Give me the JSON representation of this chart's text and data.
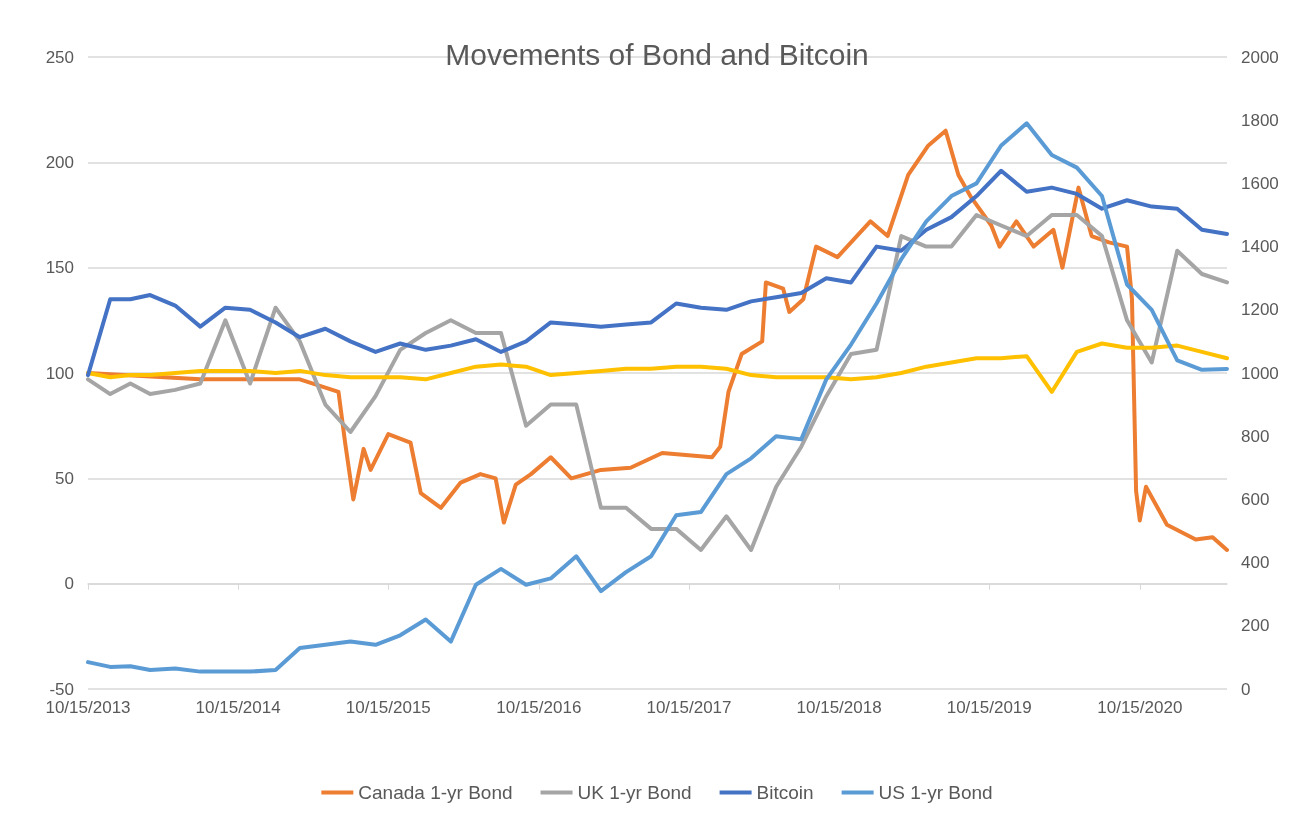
{
  "chart_data": {
    "type": "line",
    "title": "Movements of Bond and Bitcoin",
    "x": [
      "2013-10-15",
      "2013-12-08",
      "2014-01-26",
      "2014-03-15",
      "2014-05-15",
      "2014-07-15",
      "2014-09-14",
      "2014-11-13",
      "2015-01-14",
      "2015-03-14",
      "2015-05-15",
      "2015-07-15",
      "2015-09-14",
      "2015-11-13",
      "2016-01-14",
      "2016-03-15",
      "2016-05-15",
      "2016-07-15",
      "2016-09-14",
      "2016-11-13",
      "2017-01-14",
      "2017-03-15",
      "2017-05-15",
      "2017-07-15",
      "2017-09-14",
      "2017-11-13",
      "2018-01-14",
      "2018-03-15",
      "2018-05-15",
      "2018-07-15",
      "2018-09-14",
      "2018-11-13",
      "2019-01-14",
      "2019-03-15",
      "2019-05-15",
      "2019-07-15",
      "2019-09-14",
      "2019-11-13",
      "2020-01-14",
      "2020-03-15",
      "2020-05-15",
      "2020-07-15",
      "2020-09-14",
      "2020-11-13",
      "2021-01-14",
      "2021-03-15",
      "2021-05-15"
    ],
    "series": [
      {
        "name": "Canada 1-yr Bond",
        "color": "#ed7d31",
        "x": [
          "2013-10-15",
          "2014-07-15",
          "2015-03-14",
          "2015-06-16",
          "2015-07-02",
          "2015-07-22",
          "2015-08-16",
          "2015-09-02",
          "2015-10-15",
          "2015-12-08",
          "2016-01-02",
          "2016-02-20",
          "2016-04-08",
          "2016-05-26",
          "2016-07-02",
          "2016-07-22",
          "2016-08-20",
          "2016-09-26",
          "2016-11-13",
          "2017-01-02",
          "2017-03-15",
          "2017-05-26",
          "2017-08-11",
          "2017-12-10",
          "2017-12-30",
          "2018-01-19",
          "2018-02-20",
          "2018-04-11",
          "2018-04-20",
          "2018-06-01",
          "2018-06-16",
          "2018-07-20",
          "2018-08-20",
          "2018-10-11",
          "2018-12-30",
          "2019-02-10",
          "2019-04-01",
          "2019-05-20",
          "2019-07-01",
          "2019-08-01",
          "2019-08-30",
          "2019-10-20",
          "2019-11-09",
          "2019-12-20",
          "2020-01-31",
          "2020-03-19",
          "2020-04-10",
          "2020-05-19",
          "2020-06-20",
          "2020-08-01",
          "2020-09-14",
          "2020-09-26",
          "2020-10-06",
          "2020-10-15",
          "2020-10-30",
          "2020-12-20",
          "2021-02-28",
          "2021-04-10",
          "2021-05-15"
        ],
        "values": [
          100,
          97,
          97,
          91,
          67,
          40,
          64,
          54,
          71,
          67,
          43,
          36,
          48,
          52,
          50,
          29,
          47,
          52,
          60,
          50,
          54,
          55,
          62,
          60,
          65,
          91,
          109,
          115,
          143,
          140,
          129,
          135,
          160,
          155,
          172,
          165,
          194,
          208,
          215,
          194,
          184,
          170,
          160,
          172,
          160,
          168,
          150,
          188,
          165,
          162,
          160,
          135,
          44,
          30,
          46,
          28,
          21,
          22,
          16
        ]
      },
      {
        "name": "UK 1-yr Bond",
        "color": "#a5a5a5",
        "values": [
          97,
          90,
          95,
          90,
          92,
          95,
          125,
          95,
          131,
          115,
          85,
          72,
          89,
          111,
          119,
          125,
          119,
          119,
          75,
          85,
          85,
          36,
          36,
          26,
          26,
          16,
          32,
          16,
          46,
          65,
          89,
          109,
          111,
          165,
          160,
          160,
          175,
          170,
          165,
          175,
          175,
          165,
          125,
          105,
          158,
          147,
          143
        ]
      },
      {
        "color": "#ffc000",
        "values": [
          100,
          98,
          99,
          99,
          100,
          101,
          101,
          101,
          100,
          101,
          99,
          98,
          98,
          98,
          97,
          100,
          103,
          104,
          103,
          99,
          100,
          101,
          102,
          102,
          103,
          103,
          102,
          99,
          98,
          98,
          98,
          97,
          98,
          100,
          103,
          105,
          107,
          107,
          108,
          91,
          110,
          114,
          112,
          112,
          113,
          110,
          107
        ]
      },
      {
        "name": "Bitcoin",
        "color": "#4472c4",
        "values": [
          99,
          135,
          135,
          137,
          132,
          122,
          131,
          130,
          124,
          117,
          121,
          115,
          110,
          114,
          111,
          113,
          116,
          110,
          115,
          124,
          123,
          122,
          123,
          124,
          133,
          131,
          130,
          134,
          136,
          138,
          145,
          143,
          160,
          158,
          168,
          174,
          184,
          196,
          186,
          188,
          185,
          178,
          182,
          179,
          178,
          168,
          166
        ]
      },
      {
        "name": "US 1-yr Bond",
        "color": "#5b9bd5",
        "axis": "y2",
        "values": [
          85,
          70,
          72,
          60,
          65,
          55,
          55,
          55,
          60,
          130,
          140,
          150,
          140,
          170,
          220,
          150,
          330,
          380,
          330,
          350,
          420,
          310,
          370,
          420,
          550,
          560,
          680,
          730,
          800,
          790,
          980,
          1090,
          1220,
          1360,
          1480,
          1560,
          1600,
          1720,
          1790,
          1690,
          1650,
          1560,
          1280,
          1200,
          1040,
          1010,
          1013
        ]
      }
    ],
    "xlim": [
      "2013-10-15",
      "2021-05-15"
    ],
    "xticks": [
      {
        "value": "2013-10-15",
        "label": "10/15/2013"
      },
      {
        "value": "2014-10-15",
        "label": "10/15/2014"
      },
      {
        "value": "2015-10-15",
        "label": "10/15/2015"
      },
      {
        "value": "2016-10-15",
        "label": "10/15/2016"
      },
      {
        "value": "2017-10-15",
        "label": "10/15/2017"
      },
      {
        "value": "2018-10-15",
        "label": "10/15/2018"
      },
      {
        "value": "2019-10-15",
        "label": "10/15/2019"
      },
      {
        "value": "2020-10-15",
        "label": "10/15/2020"
      }
    ],
    "ylim": [
      -50,
      250
    ],
    "yticks": [
      -50,
      0,
      50,
      100,
      150,
      200,
      250
    ],
    "y2lim": [
      0,
      2000
    ],
    "y2ticks": [
      0,
      200,
      400,
      600,
      800,
      1000,
      1200,
      1400,
      1600,
      1800,
      2000
    ],
    "grid": "y",
    "legend": "bottom",
    "marker": "none",
    "line_style": "solid"
  }
}
